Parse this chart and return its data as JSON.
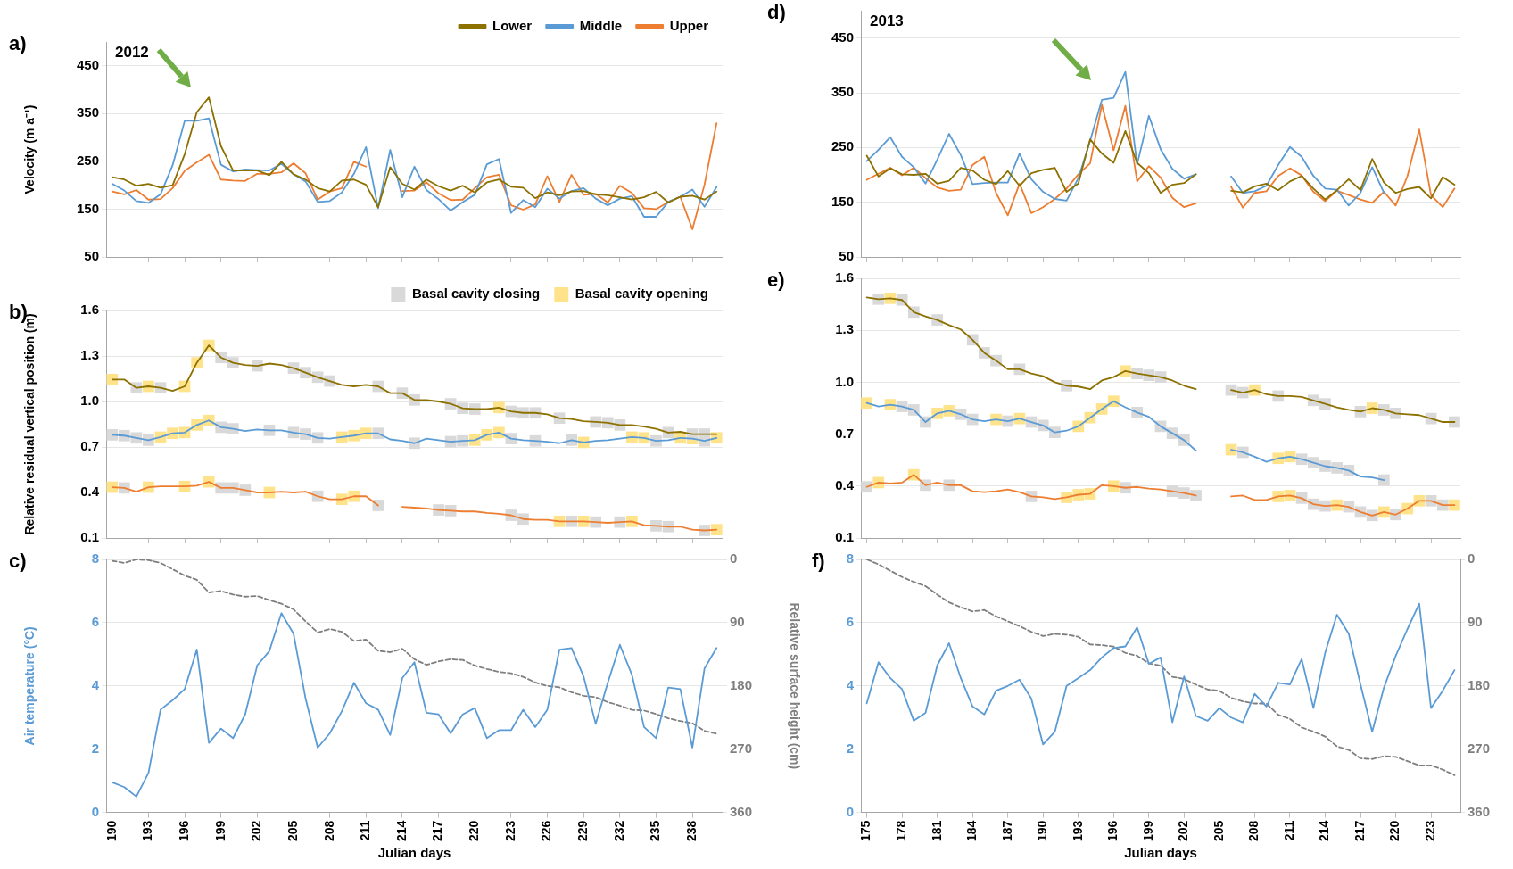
{
  "chart_data": [
    {
      "type": "line",
      "title": "2012",
      "ylabel": "Velocity (m a⁻¹)",
      "annotations": [
        "a)"
      ],
      "legend": "top right",
      "grid": "y",
      "tick_labels": "y",
      "x": [
        190,
        191,
        192,
        193,
        194,
        195,
        196,
        197,
        198,
        199,
        200,
        201,
        202,
        203,
        204,
        205,
        206,
        207,
        208,
        209,
        210,
        211,
        212,
        213,
        214,
        215,
        216,
        217,
        218,
        219,
        220,
        221,
        222,
        223,
        224,
        225,
        226,
        227,
        228,
        229,
        230,
        231,
        232,
        233,
        234,
        235,
        236,
        237,
        238,
        239,
        240
      ],
      "xlim": [
        189.5,
        240.5
      ],
      "xticks": [
        190,
        193,
        196,
        199,
        202,
        205,
        208,
        211,
        214,
        217,
        220,
        223,
        226,
        229,
        232,
        235,
        238
      ],
      "ylim": [
        50,
        500
      ],
      "yticks": [
        50,
        150,
        250,
        350,
        450
      ],
      "series": [
        {
          "name": "Lower",
          "color": "#8c7000",
          "values": [
            217,
            212,
            199,
            203,
            195,
            200,
            265,
            353,
            384,
            282,
            231,
            231,
            231,
            221,
            249,
            223,
            212,
            194,
            187,
            210,
            212,
            201,
            154,
            238,
            203,
            191,
            212,
            198,
            189,
            199,
            185,
            206,
            212,
            197,
            195,
            173,
            185,
            179,
            187,
            188,
            181,
            179,
            175,
            170,
            175,
            186,
            164,
            176,
            178,
            170,
            187
          ]
        },
        {
          "name": "Middle",
          "color": "#5b9bd5",
          "values": [
            203,
            189,
            167,
            163,
            181,
            242,
            335,
            335,
            340,
            243,
            229,
            233,
            232,
            231,
            245,
            223,
            208,
            165,
            167,
            185,
            224,
            280,
            152,
            274,
            175,
            239,
            190,
            171,
            147,
            165,
            180,
            244,
            255,
            142,
            169,
            154,
            193,
            172,
            188,
            194,
            172,
            158,
            172,
            177,
            134,
            134,
            165,
            176,
            191,
            155,
            196
          ]
        },
        {
          "name": "Upper",
          "color": "#ed7d31",
          "values": [
            187,
            181,
            190,
            170,
            171,
            194,
            230,
            248,
            264,
            212,
            210,
            209,
            224,
            224,
            227,
            246,
            225,
            170,
            187,
            194,
            249,
            239,
            null,
            null,
            188,
            189,
            206,
            183,
            169,
            170,
            194,
            217,
            222,
            158,
            149,
            160,
            219,
            165,
            222,
            180,
            182,
            164,
            199,
            184,
            152,
            150,
            165,
            176,
            108,
            201,
            330
          ]
        }
      ]
    },
    {
      "type": "line",
      "ylabel": "Relative residual vertical position (m)",
      "annotations": [
        "b)"
      ],
      "legend": "top right",
      "grid": "y",
      "tick_labels": "y",
      "x": [
        190,
        191,
        192,
        193,
        194,
        195,
        196,
        197,
        198,
        199,
        200,
        201,
        202,
        203,
        204,
        205,
        206,
        207,
        208,
        209,
        210,
        211,
        212,
        213,
        214,
        215,
        216,
        217,
        218,
        219,
        220,
        221,
        222,
        223,
        224,
        225,
        226,
        227,
        228,
        229,
        230,
        231,
        232,
        233,
        234,
        235,
        236,
        237,
        238,
        239,
        240
      ],
      "xlim": [
        189.5,
        240.5
      ],
      "xticks": [
        190,
        193,
        196,
        199,
        202,
        205,
        208,
        211,
        214,
        217,
        220,
        223,
        226,
        229,
        232,
        235,
        238
      ],
      "ylim": [
        0.1,
        1.6
      ],
      "yticks": [
        0.1,
        0.4,
        0.7,
        {
          "value": 1,
          "label": "1.0"
        },
        1.3,
        1.6
      ],
      "series": [
        {
          "type": "scatter",
          "name": "Basal cavity closing",
          "color": "#d9d9d9",
          "marker": "square",
          "x": [
            192,
            194,
            199,
            200,
            202,
            205,
            206,
            207,
            208,
            212,
            214,
            215,
            218,
            219,
            220,
            223,
            224,
            225,
            227,
            230,
            231,
            232,
            236,
            238,
            239,
            190,
            191,
            192,
            193,
            199,
            200,
            203,
            205,
            206,
            207,
            212,
            215,
            218,
            219,
            223,
            225,
            228,
            235,
            239,
            191,
            199,
            200,
            201,
            207,
            212,
            217,
            218,
            223,
            224,
            228,
            230,
            232,
            235,
            236,
            239
          ],
          "values": [
            1.09,
            1.09,
            1.29,
            1.255,
            1.235,
            1.22,
            1.19,
            1.16,
            1.135,
            1.1,
            1.055,
            1.01,
            0.985,
            0.955,
            0.95,
            0.935,
            0.925,
            0.925,
            0.89,
            0.865,
            0.86,
            0.845,
            0.795,
            0.785,
            0.785,
            0.78,
            0.775,
            0.76,
            0.745,
            0.83,
            0.82,
            0.81,
            0.795,
            0.785,
            0.76,
            0.79,
            0.725,
            0.735,
            0.74,
            0.755,
            0.74,
            0.745,
            0.74,
            0.74,
            0.43,
            0.43,
            0.43,
            0.415,
            0.375,
            0.315,
            0.285,
            0.28,
            0.25,
            0.225,
            0.21,
            0.205,
            0.205,
            0.18,
            0.175,
            0.15
          ]
        },
        {
          "type": "scatter",
          "name": "Basal cavity opening",
          "color": "#ffe38a",
          "marker": "square",
          "x": [
            190,
            193,
            196,
            197,
            198,
            222,
            194,
            195,
            196,
            197,
            198,
            209,
            210,
            211,
            220,
            221,
            222,
            229,
            233,
            234,
            237,
            238,
            240,
            190,
            193,
            196,
            198,
            203,
            209,
            210,
            227,
            229,
            233,
            240
          ],
          "values": [
            1.145,
            1.1,
            1.1,
            1.255,
            1.37,
            0.96,
            0.765,
            0.79,
            0.795,
            0.845,
            0.875,
            0.765,
            0.775,
            0.79,
            0.745,
            0.78,
            0.795,
            0.73,
            0.765,
            0.76,
            0.76,
            0.755,
            0.76,
            0.435,
            0.435,
            0.44,
            0.47,
            0.4,
            0.355,
            0.375,
            0.21,
            0.21,
            0.21,
            0.155
          ]
        },
        {
          "color": "#8c7000",
          "values": [
            1.145,
            1.145,
            1.09,
            1.1,
            1.09,
            1.07,
            1.1,
            1.255,
            1.37,
            1.29,
            1.255,
            1.24,
            1.235,
            1.25,
            1.24,
            1.22,
            1.19,
            1.16,
            1.135,
            1.11,
            1.1,
            1.11,
            1.1,
            1.055,
            1.055,
            1.01,
            1.01,
            1.0,
            0.985,
            0.955,
            0.95,
            0.95,
            0.96,
            0.935,
            0.925,
            0.925,
            0.915,
            0.89,
            0.885,
            0.87,
            0.865,
            0.86,
            0.845,
            0.845,
            0.835,
            0.82,
            0.795,
            0.8,
            0.785,
            0.785,
            0.785
          ]
        },
        {
          "color": "#5b9bd5",
          "values": [
            0.78,
            0.775,
            0.76,
            0.745,
            0.765,
            0.79,
            0.795,
            0.845,
            0.875,
            0.83,
            0.82,
            0.805,
            0.815,
            0.81,
            0.81,
            0.795,
            0.785,
            0.76,
            0.755,
            0.765,
            0.775,
            0.79,
            0.79,
            0.75,
            0.74,
            0.725,
            0.755,
            0.745,
            0.735,
            0.74,
            0.745,
            0.78,
            0.795,
            0.755,
            0.745,
            0.74,
            0.735,
            0.725,
            0.745,
            0.73,
            0.74,
            0.745,
            0.755,
            0.765,
            0.76,
            0.74,
            0.745,
            0.76,
            0.755,
            0.74,
            0.76
          ]
        },
        {
          "color": "#ed7d31",
          "values": [
            0.435,
            0.43,
            0.405,
            0.435,
            0.44,
            0.44,
            0.44,
            0.445,
            0.47,
            0.43,
            0.43,
            0.415,
            0.4,
            0.4,
            0.405,
            0.4,
            0.405,
            0.375,
            0.355,
            0.355,
            0.375,
            0.375,
            0.315,
            null,
            0.305,
            0.3,
            0.295,
            0.285,
            0.28,
            0.275,
            0.275,
            0.265,
            0.26,
            0.25,
            0.225,
            0.22,
            0.22,
            0.21,
            0.21,
            0.21,
            0.205,
            0.2,
            0.205,
            0.21,
            0.185,
            0.18,
            0.175,
            0.175,
            0.155,
            0.15,
            0.155
          ]
        }
      ]
    },
    {
      "type": "line",
      "ylabel": "Air temperature (°C)",
      "y2label": "Relative surface height (cm)",
      "xlabel": "Julian days",
      "annotations": [
        "c)"
      ],
      "grid": "y",
      "x": [
        190,
        191,
        192,
        193,
        194,
        195,
        196,
        197,
        198,
        199,
        200,
        201,
        202,
        203,
        204,
        205,
        206,
        207,
        208,
        209,
        210,
        211,
        212,
        213,
        214,
        215,
        216,
        217,
        218,
        219,
        220,
        221,
        222,
        223,
        224,
        225,
        226,
        227,
        228,
        229,
        230,
        231,
        232,
        233,
        234,
        235,
        236,
        237,
        238,
        239,
        240
      ],
      "xlim": [
        189.5,
        240.5
      ],
      "xticks": [
        190,
        193,
        196,
        199,
        202,
        205,
        208,
        211,
        214,
        217,
        220,
        223,
        226,
        229,
        232,
        235,
        238
      ],
      "ylim": [
        0,
        8
      ],
      "yticks": [
        0,
        2,
        4,
        6,
        8
      ],
      "y2lim": [
        360,
        0
      ],
      "y2ticks": [
        0,
        90,
        180,
        270,
        360
      ],
      "series": [
        {
          "color": "#5b9bd5",
          "values": [
            0.95,
            0.8,
            0.5,
            1.25,
            3.25,
            3.55,
            3.9,
            5.15,
            2.2,
            2.65,
            2.35,
            3.1,
            4.65,
            5.1,
            6.3,
            5.65,
            3.6,
            2.05,
            2.5,
            3.2,
            4.1,
            3.45,
            3.25,
            2.45,
            4.25,
            4.75,
            3.15,
            3.1,
            2.5,
            3.1,
            3.3,
            2.35,
            2.6,
            2.6,
            3.25,
            2.7,
            3.25,
            5.15,
            5.2,
            4.3,
            2.8,
            4.1,
            5.3,
            4.35,
            2.7,
            2.35,
            3.95,
            3.9,
            2.05,
            4.55,
            5.2
          ]
        },
        {
          "color": "#7f7f7f",
          "axis": "y2",
          "line_style": "dashed",
          "values": [
            2,
            5,
            0,
            1,
            5,
            14,
            23,
            29,
            47,
            45,
            50,
            53,
            52,
            58,
            63,
            71,
            88,
            104,
            99,
            103,
            116,
            114,
            130,
            132,
            127,
            142,
            150,
            145,
            142,
            143,
            151,
            156,
            160,
            162,
            167,
            175,
            180,
            182,
            189,
            194,
            196,
            203,
            208,
            214,
            215,
            220,
            226,
            230,
            233,
            244,
            248
          ]
        }
      ]
    },
    {
      "type": "line",
      "title": "2013",
      "annotations": [
        "d)"
      ],
      "grid": "y",
      "tick_labels": "y",
      "x": [
        175,
        176,
        177,
        178,
        179,
        180,
        181,
        182,
        183,
        184,
        185,
        186,
        187,
        188,
        189,
        190,
        191,
        192,
        193,
        194,
        195,
        196,
        197,
        198,
        199,
        200,
        201,
        202,
        203,
        204,
        205,
        206,
        207,
        208,
        209,
        210,
        211,
        212,
        213,
        214,
        215,
        216,
        217,
        218,
        219,
        220,
        221,
        222,
        223,
        224,
        225
      ],
      "xlim": [
        174.5,
        225.5
      ],
      "xticks": [
        175,
        178,
        181,
        184,
        187,
        190,
        193,
        196,
        199,
        202,
        205,
        208,
        211,
        214,
        217,
        220,
        223
      ],
      "ylim": [
        50,
        500
      ],
      "yticks": [
        50,
        150,
        250,
        350,
        450
      ],
      "series": [
        {
          "color": "#8c7000",
          "values": [
            235,
            197,
            212,
            201,
            200,
            202,
            184,
            189,
            213,
            208,
            191,
            183,
            207,
            180,
            203,
            209,
            213,
            169,
            184,
            265,
            239,
            222,
            280,
            222,
            203,
            167,
            182,
            185,
            201,
            null,
            null,
            171,
            168,
            179,
            184,
            172,
            188,
            198,
            175,
            155,
            172,
            192,
            172,
            229,
            186,
            167,
            174,
            178,
            157,
            196,
            182
          ]
        },
        {
          "color": "#5b9bd5",
          "values": [
            225,
            246,
            269,
            233,
            214,
            184,
            228,
            275,
            236,
            183,
            185,
            186,
            186,
            239,
            192,
            169,
            156,
            153,
            194,
            262,
            337,
            341,
            388,
            219,
            308,
            247,
            211,
            193,
            201,
            null,
            null,
            197,
            167,
            170,
            180,
            218,
            251,
            233,
            198,
            175,
            173,
            144,
            167,
            214,
            167,
            null,
            null,
            null,
            null,
            null,
            null
          ]
        },
        {
          "color": "#ed7d31",
          "values": [
            191,
            202,
            213,
            199,
            213,
            194,
            177,
            171,
            173,
            218,
            233,
            167,
            126,
            184,
            130,
            141,
            156,
            175,
            201,
            221,
            328,
            245,
            326,
            188,
            216,
            195,
            158,
            141,
            148,
            null,
            null,
            178,
            140,
            167,
            170,
            198,
            212,
            199,
            169,
            152,
            171,
            163,
            155,
            149,
            169,
            144,
            198,
            283,
            163,
            141,
            175
          ]
        }
      ]
    },
    {
      "type": "line",
      "annotations": [
        "e)"
      ],
      "grid": "y",
      "tick_labels": "y",
      "x": [
        175,
        176,
        177,
        178,
        179,
        180,
        181,
        182,
        183,
        184,
        185,
        186,
        187,
        188,
        189,
        190,
        191,
        192,
        193,
        194,
        195,
        196,
        197,
        198,
        199,
        200,
        201,
        202,
        203,
        204,
        205,
        206,
        207,
        208,
        209,
        210,
        211,
        212,
        213,
        214,
        215,
        216,
        217,
        218,
        219,
        220,
        221,
        222,
        223,
        224,
        225
      ],
      "xlim": [
        174.5,
        225.5
      ],
      "xticks": [
        175,
        178,
        181,
        184,
        187,
        190,
        193,
        196,
        199,
        202,
        205,
        208,
        211,
        214,
        217,
        220,
        223
      ],
      "ylim": [
        0.1,
        1.6
      ],
      "yticks": [
        0.1,
        0.4,
        0.7,
        {
          "value": 1,
          "label": "1.0"
        },
        1.3,
        1.6
      ],
      "series": [
        {
          "type": "scatter",
          "color": "#d9d9d9",
          "marker": "square",
          "x": [
            176,
            178,
            179,
            181,
            184,
            185,
            186,
            188,
            192,
            198,
            199,
            200,
            206,
            207,
            210,
            213,
            214,
            217,
            219,
            220,
            223,
            225,
            178,
            179,
            180,
            183,
            184,
            187,
            189,
            190,
            191,
            198,
            200,
            201,
            202,
            207,
            212,
            213,
            214,
            215,
            216,
            219,
            175,
            180,
            182,
            189,
            197,
            201,
            202,
            203,
            212,
            213,
            214,
            216,
            217,
            218,
            220,
            223,
            224
          ],
          "values": [
            1.48,
            1.475,
            1.405,
            1.36,
            1.245,
            1.17,
            1.125,
            1.075,
            0.98,
            1.05,
            1.04,
            1.03,
            0.955,
            0.94,
            0.92,
            0.895,
            0.875,
            0.83,
            0.84,
            0.82,
            0.79,
            0.77,
            0.86,
            0.84,
            0.77,
            0.815,
            0.785,
            0.775,
            0.77,
            0.75,
            0.71,
            0.825,
            0.745,
            0.705,
            0.665,
            0.595,
            0.555,
            0.535,
            0.515,
            0.505,
            0.49,
            0.435,
            0.395,
            0.405,
            0.405,
            0.34,
            0.39,
            0.37,
            0.36,
            0.345,
            0.33,
            0.295,
            0.285,
            0.28,
            0.25,
            0.23,
            0.235,
            0.315,
            0.29
          ]
        },
        {
          "type": "scatter",
          "color": "#ffe38a",
          "marker": "square",
          "x": [
            177,
            197,
            208,
            218,
            175,
            177,
            181,
            182,
            186,
            188,
            193,
            194,
            195,
            196,
            206,
            210,
            211,
            176,
            179,
            192,
            193,
            194,
            196,
            210,
            211,
            215,
            219,
            221,
            222,
            225
          ],
          "values": [
            1.485,
            1.065,
            0.955,
            0.85,
            0.88,
            0.87,
            0.82,
            0.835,
            0.785,
            0.79,
            0.745,
            0.795,
            0.845,
            0.89,
            0.61,
            0.56,
            0.57,
            0.42,
            0.465,
            0.335,
            0.35,
            0.355,
            0.4,
            0.34,
            0.345,
            0.29,
            0.25,
            0.27,
            0.315,
            0.29
          ]
        },
        {
          "color": "#8c7000",
          "values": [
            1.49,
            1.48,
            1.485,
            1.475,
            1.405,
            1.38,
            1.36,
            1.33,
            1.305,
            1.245,
            1.17,
            1.125,
            1.075,
            1.075,
            1.05,
            1.035,
            1.0,
            0.98,
            0.975,
            0.96,
            1.01,
            1.03,
            1.065,
            1.05,
            1.04,
            1.03,
            1.01,
            0.98,
            0.96,
            null,
            null,
            0.955,
            0.94,
            0.955,
            0.93,
            0.92,
            0.92,
            0.915,
            0.895,
            0.875,
            0.855,
            0.84,
            0.83,
            0.85,
            0.84,
            0.82,
            0.815,
            0.81,
            0.79,
            0.77,
            0.77
          ]
        },
        {
          "color": "#5b9bd5",
          "values": [
            0.88,
            0.86,
            0.87,
            0.86,
            0.84,
            0.77,
            0.82,
            0.835,
            0.815,
            0.785,
            0.775,
            0.785,
            0.775,
            0.79,
            0.77,
            0.75,
            0.71,
            0.72,
            0.745,
            0.795,
            0.845,
            0.89,
            0.855,
            0.825,
            0.8,
            0.745,
            0.705,
            0.665,
            0.605,
            null,
            null,
            0.61,
            0.595,
            0.57,
            0.54,
            0.56,
            0.57,
            0.555,
            0.535,
            0.515,
            0.505,
            0.49,
            0.455,
            0.45,
            0.435,
            null,
            null,
            null,
            null,
            null,
            null
          ]
        },
        {
          "color": "#ed7d31",
          "values": [
            0.395,
            0.42,
            0.415,
            0.42,
            0.465,
            0.405,
            0.42,
            0.405,
            0.405,
            0.37,
            0.365,
            0.37,
            0.38,
            0.365,
            0.34,
            0.335,
            0.325,
            0.335,
            0.35,
            0.355,
            0.405,
            0.4,
            0.39,
            0.395,
            0.385,
            0.38,
            0.37,
            0.36,
            0.345,
            null,
            null,
            0.34,
            0.345,
            0.32,
            0.32,
            0.34,
            0.345,
            0.33,
            0.295,
            0.285,
            0.29,
            0.28,
            0.25,
            0.23,
            0.25,
            0.235,
            0.27,
            0.315,
            0.315,
            0.29,
            0.29
          ]
        }
      ]
    },
    {
      "type": "line",
      "xlabel": "Julian days",
      "annotations": [
        "f)"
      ],
      "grid": "y",
      "x": [
        175,
        176,
        177,
        178,
        179,
        180,
        181,
        182,
        183,
        184,
        185,
        186,
        187,
        188,
        189,
        190,
        191,
        192,
        193,
        194,
        195,
        196,
        197,
        198,
        199,
        200,
        201,
        202,
        203,
        204,
        205,
        206,
        207,
        208,
        209,
        210,
        211,
        212,
        213,
        214,
        215,
        216,
        217,
        218,
        219,
        220,
        221,
        222,
        223,
        224,
        225
      ],
      "xlim": [
        174.5,
        225.5
      ],
      "xticks": [
        175,
        178,
        181,
        184,
        187,
        190,
        193,
        196,
        199,
        202,
        205,
        208,
        211,
        214,
        217,
        220,
        223
      ],
      "ylim": [
        0,
        8
      ],
      "yticks": [
        0,
        2,
        4,
        6,
        8
      ],
      "y2lim": [
        360,
        0
      ],
      "y2ticks": [
        0,
        90,
        180,
        270,
        360
      ],
      "series": [
        {
          "color": "#5b9bd5",
          "values": [
            3.45,
            4.75,
            4.25,
            3.9,
            2.9,
            3.15,
            4.65,
            5.35,
            4.25,
            3.35,
            3.1,
            3.85,
            4.0,
            4.2,
            3.6,
            2.15,
            2.55,
            4.0,
            4.25,
            4.5,
            4.9,
            5.2,
            5.25,
            5.85,
            4.7,
            4.9,
            2.85,
            4.3,
            3.05,
            2.9,
            3.3,
            3.0,
            2.85,
            3.75,
            3.35,
            4.1,
            4.05,
            4.85,
            3.3,
            5.05,
            6.25,
            5.65,
            4.05,
            2.55,
            3.95,
            4.95,
            5.8,
            6.6,
            3.3,
            3.85,
            4.5
          ]
        },
        {
          "color": "#7f7f7f",
          "axis": "y2",
          "line_style": "dashed",
          "values": [
            0,
            7,
            16,
            25,
            32,
            38,
            50,
            61,
            68,
            74,
            72,
            81,
            88,
            95,
            103,
            109,
            106,
            107,
            110,
            121,
            122,
            124,
            133,
            137,
            148,
            151,
            167,
            170,
            178,
            185,
            187,
            197,
            202,
            205,
            205,
            221,
            227,
            239,
            245,
            252,
            266,
            271,
            283,
            284,
            280,
            281,
            287,
            293,
            293,
            299,
            307
          ]
        }
      ]
    }
  ]
}
